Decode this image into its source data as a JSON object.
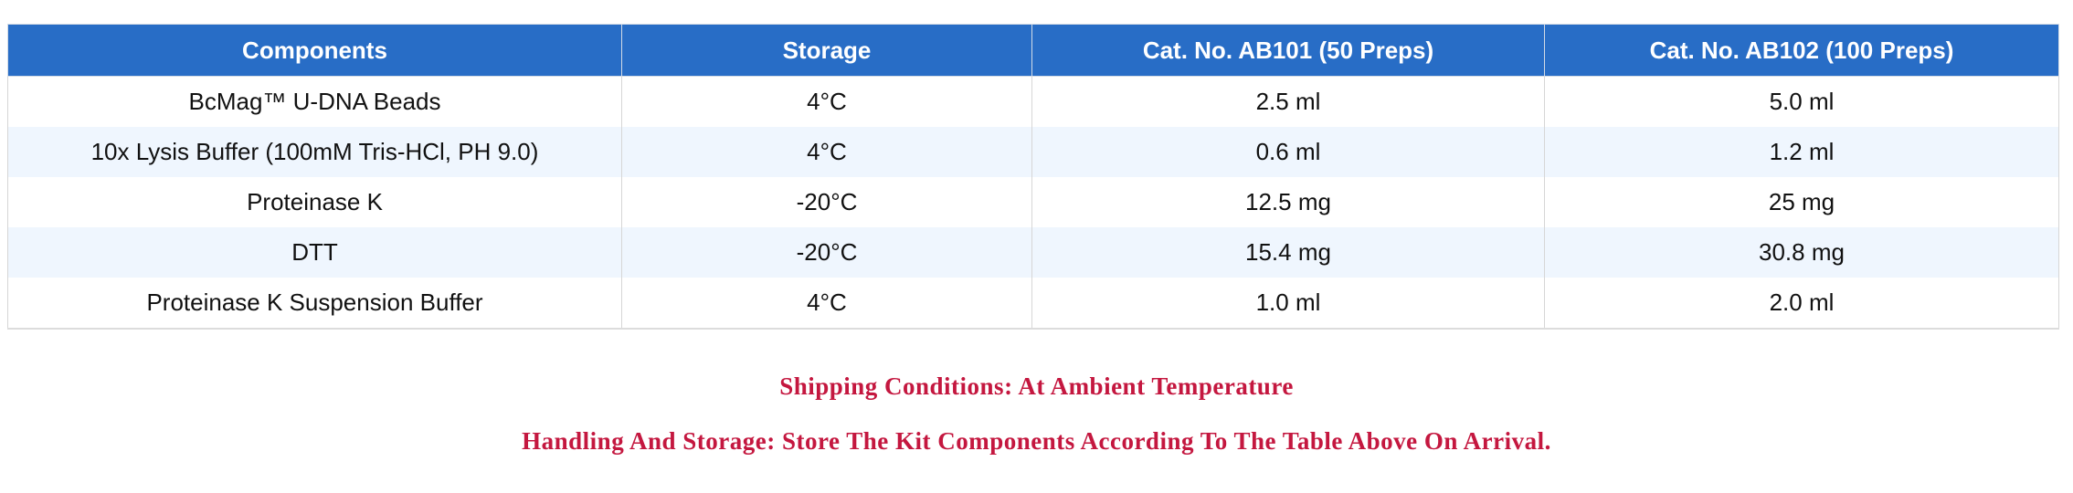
{
  "table": {
    "headers": [
      "Components",
      "Storage",
      "Cat. No. AB101 (50 Preps)",
      "Cat. No. AB102 (100 Preps)"
    ],
    "rows": [
      [
        "BcMag™ U-DNA Beads",
        "4°C",
        "2.5 ml",
        "5.0 ml"
      ],
      [
        "10x Lysis Buffer (100mM Tris-HCl, PH 9.0)",
        "4°C",
        "0.6 ml",
        "1.2 ml"
      ],
      [
        "Proteinase K",
        "-20°C",
        "12.5 mg",
        "25 mg"
      ],
      [
        "DTT",
        "-20°C",
        "15.4 mg",
        "30.8 mg"
      ],
      [
        "Proteinase K Suspension Buffer",
        "4°C",
        "1.0 ml",
        "2.0 ml"
      ]
    ]
  },
  "notes": {
    "shipping": "Shipping Conditions: At Ambient Temperature",
    "handling": "Handling And Storage: Store The Kit Components According To The Table Above On Arrival."
  },
  "colors": {
    "header_bg": "#286dc6",
    "alt_row": "#eff6fe",
    "note_text": "#c4173f"
  }
}
